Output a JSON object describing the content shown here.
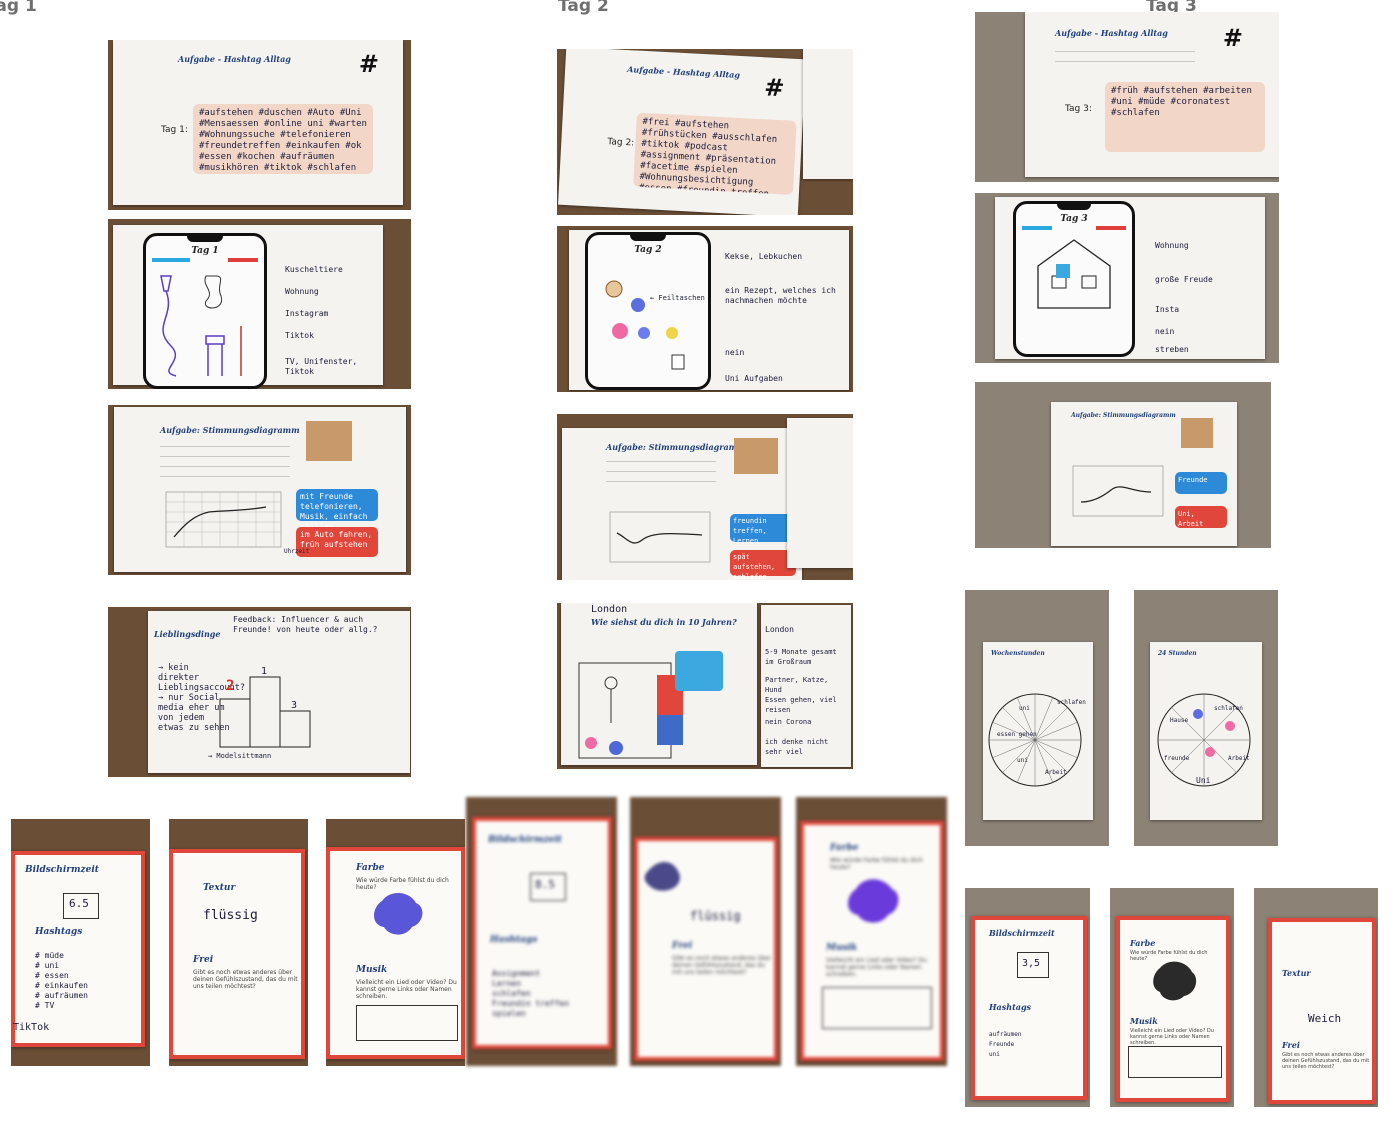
{
  "columns": [
    {
      "label": "Tag 1"
    },
    {
      "label": "Tag 2"
    },
    {
      "label": "Tag 3"
    }
  ],
  "hashtag_sheets": [
    {
      "title": "Aufgabe - Hashtag Alltag",
      "symbol": "#",
      "day": "Tag 1:",
      "text": "#aufstehen #duschen #Auto #Uni #Mensaessen #online uni #warten #Wohnungssuche #telefonieren #freundetreffen #einkaufen #ok #essen #kochen #aufräumen #musikhören #tiktok #schlafen"
    },
    {
      "title": "Aufgabe - Hashtag Alltag",
      "symbol": "#",
      "day": "Tag 2:",
      "text": "#frei #aufstehen #frühstücken #ausschlafen #tiktok #podcast #assignment #präsentation #facetime #spielen #Wohnungsbesichtigung #essen #freundin treffen #chillen"
    },
    {
      "title": "Aufgabe - Hashtag Alltag",
      "symbol": "#",
      "day": "Tag 3:",
      "text": "#früh #aufstehen #arbeiten #uni #müde #coronatest #schlafen"
    }
  ],
  "phone_sheets": [
    {
      "title": "Tag 1",
      "answers": [
        "Kuscheltiere",
        "Wohnung",
        "Instagram",
        "Tiktok",
        "TV, Unifenster, Tiktok"
      ]
    },
    {
      "title": "Tag 2",
      "note": "← Feiltaschen",
      "answers": [
        "Kekse, Lebkuchen",
        "ein Rezept, welches ich nachmachen möchte",
        "nein",
        "Uni Aufgaben"
      ]
    },
    {
      "title": "Tag 3",
      "answers": [
        "Wohnung",
        "große Freude",
        "Insta",
        "nein",
        "streben"
      ]
    }
  ],
  "mood_sheets": [
    {
      "title": "Aufgabe: Stimmungsdiagramm",
      "blue_text": "mit Freunde telefonieren, Musik, einfach chillen",
      "red_text": "im Auto fahren, früh aufstehen",
      "axis_bottom": "Uhrzeit"
    },
    {
      "title": "Aufgabe: Stimmungsdiagramm",
      "blue_text": "freundin treffen, Lernen",
      "red_text": "spät aufstehen, schlafen"
    },
    {
      "title": "Aufgabe: Stimmungsdiagramm",
      "blue_text": "Freunde",
      "red_text": "Uni, Arbeit"
    }
  ],
  "idol_sheet": {
    "title": "Lieblingsdinge",
    "header_note": "Feedback: Influencer & auch Freunde! von heute oder allg.?",
    "notes": "→ kein direkter Lieblingsaccount? → nur Social media eher um von jedem etwas zu sehen",
    "podium": [
      "1",
      "2",
      "3"
    ],
    "footer": "→ Modelsittmann"
  },
  "future_sheet": {
    "title": "Wie siehst du dich in 10 Jahren?",
    "city": "London",
    "answers": [
      "London",
      "5-9 Monate gesamt im Großraum",
      "Partner, Katze, Hund",
      "Essen gehen, viel reisen",
      "nein Corona",
      "ich denke nicht sehr viel"
    ]
  },
  "clock_sheets": [
    {
      "title": "Wochenstunden",
      "labels": [
        "schlafen",
        "uni",
        "essen gehen",
        "uni",
        "Arbeit"
      ]
    },
    {
      "title": "24 Stunden",
      "labels": [
        "schlafen",
        "Uni",
        "freunde",
        "Arbeit",
        "Hause"
      ]
    }
  ],
  "cards": [
    {
      "title": "Bildschirmzeit",
      "value": "6.5",
      "title2": "Hashtags",
      "lines": [
        "# müde",
        "# uni",
        "# essen",
        "# einkaufen",
        "# aufräumen",
        "# TV"
      ],
      "extra": "TikTok"
    },
    {
      "title": "Textur",
      "value": "flüssig",
      "title2": "Frei",
      "text2": "Gibt es noch etwas anderes über deinen Gefühlszustand, das du mit uns teilen möchtest?"
    },
    {
      "title": "Farbe",
      "subtitle": "Wie würde Farbe fühlst du dich heute?",
      "title2": "Musik",
      "text2": "Vielleicht ein Lied oder Video? Du kannst gerne Links oder Namen schreiben."
    },
    {
      "title": "Bildschirmzeit",
      "value": "8.5",
      "title2": "Hashtags",
      "lines": [
        "Assignment",
        "Lernen",
        "schlafen",
        "Freundin treffen",
        "spielen"
      ]
    },
    {
      "title": "Textur",
      "value": "flüssig",
      "title2": "Frei",
      "text2": "Gibt es noch etwas anderes über deinen Gefühlszustand, das du mit uns teilen möchtest?"
    },
    {
      "title": "Farbe",
      "subtitle": "Wie würde Farbe fühlst du dich heute?",
      "title2": "Musik",
      "text2": "Vielleicht ein Lied oder Video? Du kannst gerne Links oder Namen schreiben."
    },
    {
      "title": "Bildschirmzeit",
      "value": "3,5",
      "title2": "Hashtags",
      "lines": [
        "aufräumen",
        "Freunde",
        "uni"
      ]
    },
    {
      "title": "Farbe",
      "subtitle": "Wie würde Farbe fühlst du dich heute?",
      "title2": "Musik",
      "text2": "Vielleicht ein Lied oder Video? Du kannst gerne Links oder Namen schreiben."
    },
    {
      "title": "Textur",
      "value": "Weich",
      "title2": "Frei",
      "text2": "Gibt es noch etwas anderes über deinen Gefühlszustand, das du mit uns teilen möchtest?"
    }
  ],
  "colors": {
    "accent_red": "#e0473a",
    "accent_blue": "#2d8ad8",
    "pink_box": "#f2d7c9",
    "title_blue": "#1f3f7a"
  }
}
